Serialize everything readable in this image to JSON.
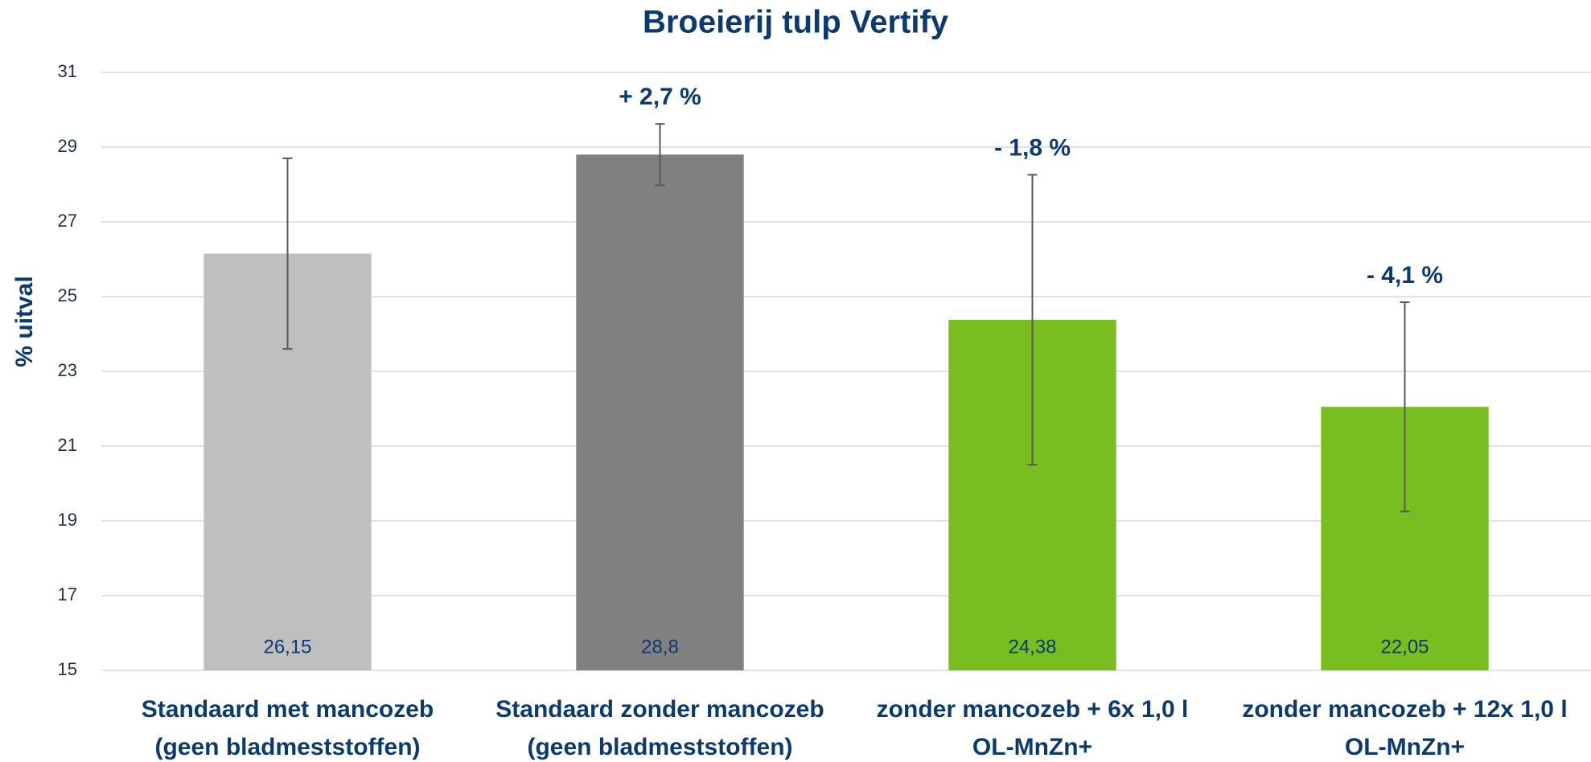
{
  "chart_data": {
    "type": "bar",
    "title": "Broeierij tulp Vertify",
    "y_label": "% uitval",
    "categories": [
      [
        "Standaard met mancozeb",
        "(geen bladmeststoffen)"
      ],
      [
        "Standaard zonder mancozeb",
        "(geen bladmeststoffen)"
      ],
      [
        "zonder mancozeb + 6x 1,0 l",
        "OL-MnZn+"
      ],
      [
        "zonder mancozeb + 12x 1,0 l",
        "OL-MnZn+"
      ]
    ],
    "values": [
      26.15,
      28.8,
      24.38,
      22.05
    ],
    "value_labels": [
      "26,15",
      "28,8",
      "24,38",
      "22,05"
    ],
    "errors": [
      2.55,
      0.82,
      3.88,
      2.8
    ],
    "annotations": [
      null,
      "+ 2,7 %",
      "- 1,8 %",
      "- 4,1 %"
    ],
    "colors": [
      "#bfbfbf",
      "#808080",
      "#78be20",
      "#78be20"
    ],
    "ylim": [
      15,
      31
    ],
    "yticks": [
      15,
      17,
      19,
      21,
      23,
      25,
      27,
      29,
      31
    ],
    "grid": true
  }
}
